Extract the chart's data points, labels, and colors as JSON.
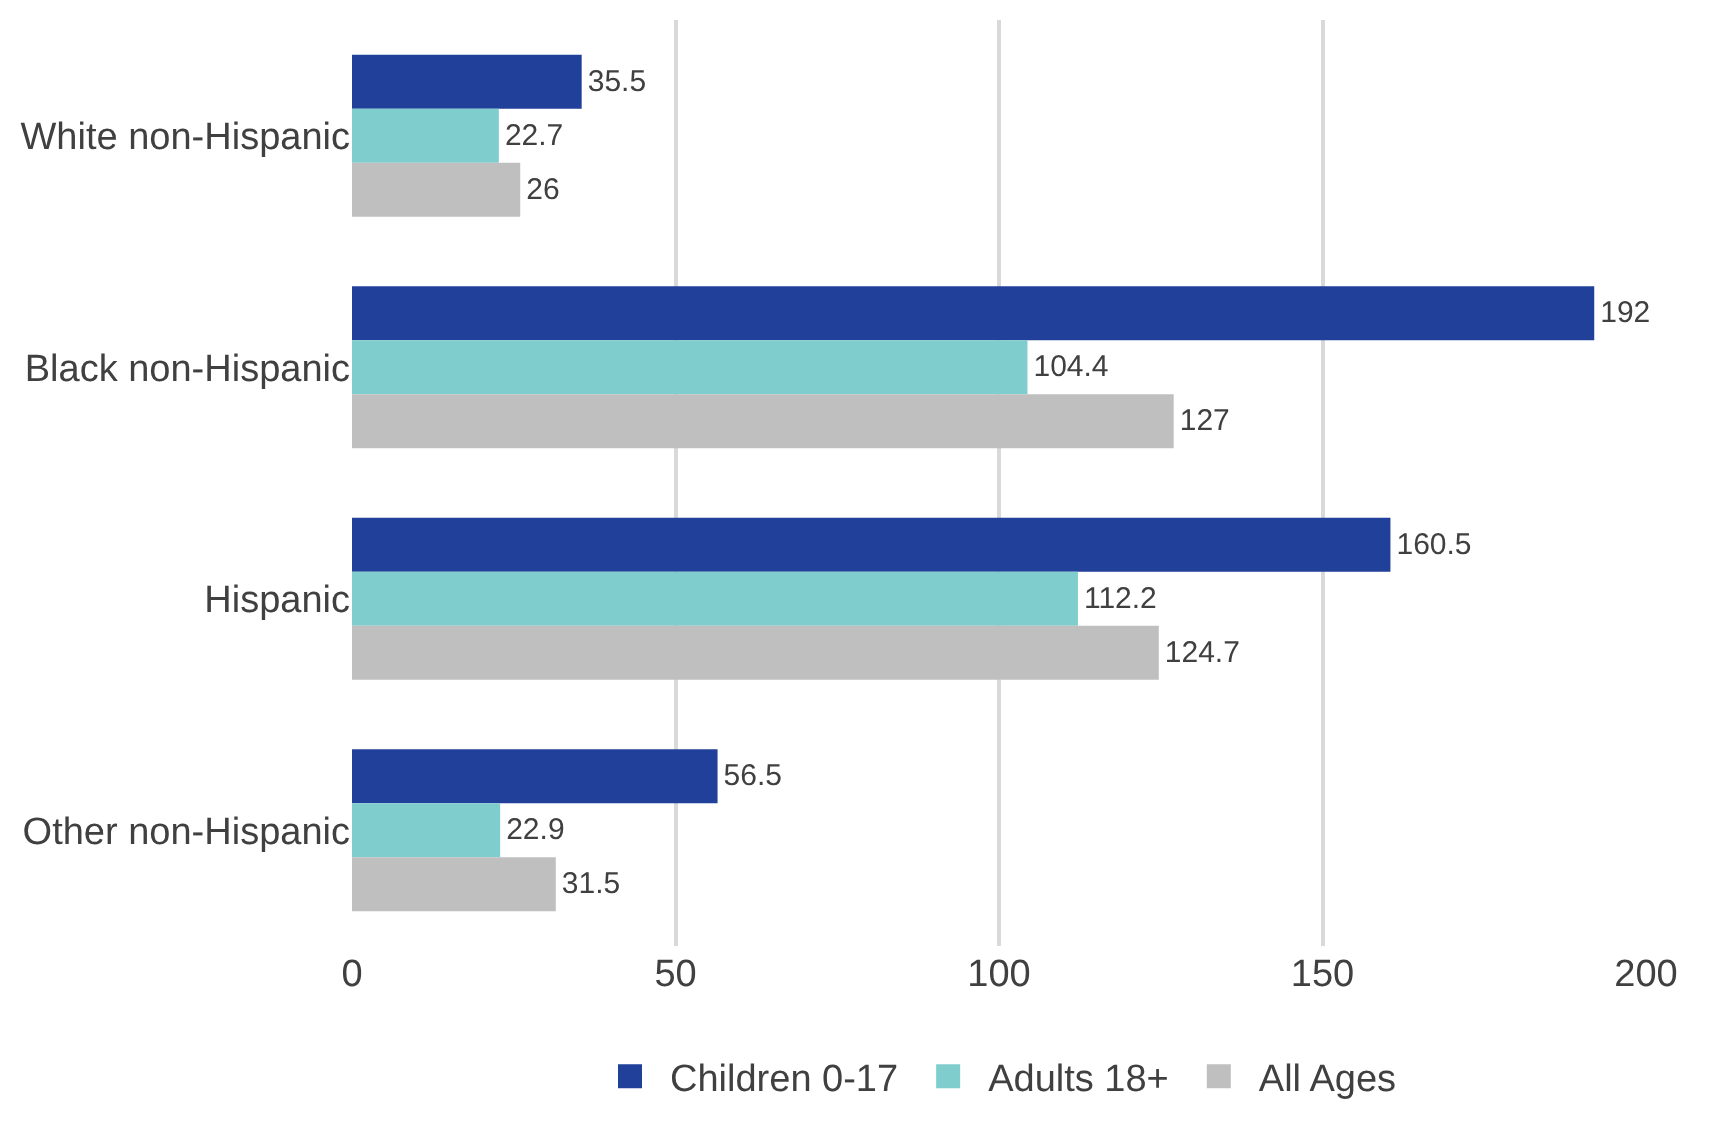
{
  "chart_data": {
    "type": "bar",
    "orientation": "horizontal",
    "categories": [
      "White non-Hispanic",
      "Black non-Hispanic",
      "Hispanic",
      "Other non-Hispanic"
    ],
    "series": [
      {
        "name": "Children 0-17",
        "color": "#21409a",
        "values": [
          35.5,
          192,
          160.5,
          56.5
        ]
      },
      {
        "name": "Adults 18+",
        "color": "#7fcdcd",
        "values": [
          22.7,
          104.4,
          112.2,
          22.9
        ]
      },
      {
        "name": "All Ages",
        "color": "#bfbfbf",
        "values": [
          26,
          127,
          124.7,
          31.5
        ]
      }
    ],
    "xlim": [
      0,
      200
    ],
    "xticks": [
      0,
      50,
      100,
      150,
      200
    ],
    "grid": "x",
    "legend": "bottom",
    "data_labels": true
  }
}
